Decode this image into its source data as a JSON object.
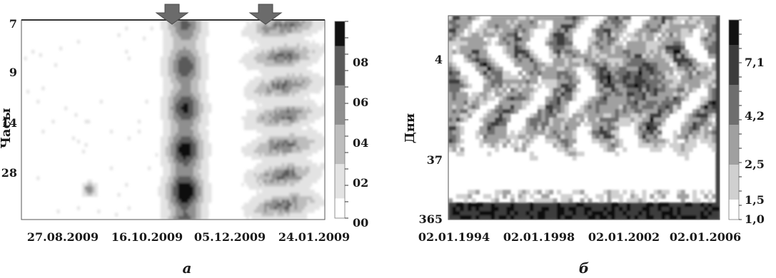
{
  "chart_data": [
    {
      "type": "heatmap",
      "panel_label": "а",
      "ylabel": "Часы",
      "x_tick_labels": [
        "27.08.2009",
        "16.10.2009",
        "05.12.2009",
        "24.01.2009"
      ],
      "y_tick_labels": [
        "7",
        "9",
        "14",
        "28"
      ],
      "colorbar_tick_labels": [
        "08",
        "06",
        "04",
        "02",
        "00"
      ],
      "colormap": [
        "#ffffff",
        "#e3e3e3",
        "#bdbdbd",
        "#8f8f8f",
        "#5a5a5a",
        "#111111"
      ],
      "markers": [
        {
          "type": "arrow-down",
          "near_date": "2009-11-05"
        },
        {
          "type": "arrow-down",
          "near_date": "2009-12-17"
        }
      ],
      "legend": "colorbar-right"
    },
    {
      "type": "heatmap",
      "panel_label": "б",
      "ylabel": "Дни",
      "x_tick_labels": [
        "02.01.1994",
        "02.01.1998",
        "02.01.2002",
        "02.01.2006"
      ],
      "y_tick_labels": [
        "4",
        "37",
        "365"
      ],
      "colorbar_tick_labels": [
        "7,1",
        "4,2",
        "2,5",
        "1,5",
        "1,0"
      ],
      "colormap": [
        "#ffffff",
        "#d0d0d0",
        "#a0a0a0",
        "#6e6e6e",
        "#3c3c3c",
        "#111111"
      ],
      "legend": "colorbar-right"
    }
  ]
}
